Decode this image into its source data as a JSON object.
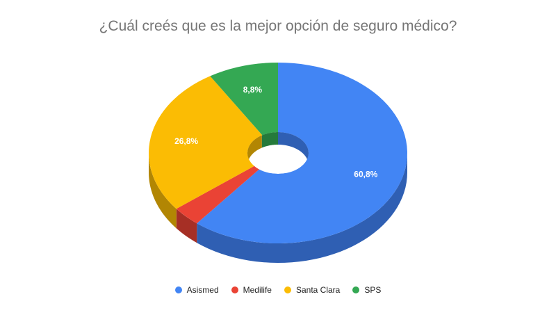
{
  "chart_data": {
    "type": "pie",
    "title": "¿Cuál creés que es la mejor opción de seguro médico?",
    "legend_position": "bottom",
    "slices": [
      {
        "label": "Asismed",
        "value": 60.8,
        "display": "60,8%",
        "color": "#4285f4",
        "side_color": "#2f5fb3"
      },
      {
        "label": "Medilife",
        "value": 3.6,
        "display": "",
        "color": "#ea4335",
        "side_color": "#a62f25"
      },
      {
        "label": "Santa Clara",
        "value": 26.8,
        "display": "26,8%",
        "color": "#fbbc04",
        "side_color": "#b28603"
      },
      {
        "label": "SPS",
        "value": 8.8,
        "display": "8,8%",
        "color": "#34a853",
        "side_color": "#257a3b"
      }
    ]
  }
}
